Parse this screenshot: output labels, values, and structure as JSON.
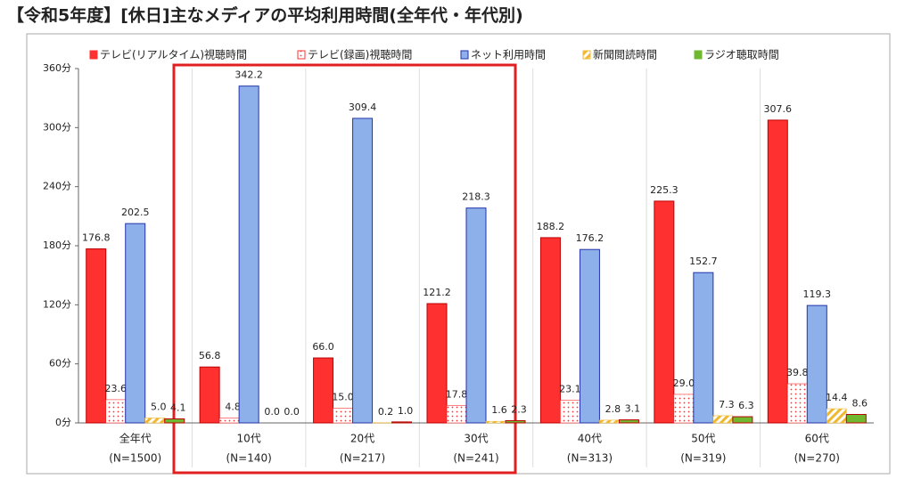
{
  "chart_data": {
    "type": "bar",
    "title": "【令和5年度】[休日]主なメディアの平均利用時間(全年代・年代別)",
    "categories": [
      "全年代",
      "10代",
      "20代",
      "30代",
      "40代",
      "50代",
      "60代"
    ],
    "sample_sizes": [
      "(N=1500)",
      "(N=140)",
      "(N=217)",
      "(N=241)",
      "(N=313)",
      "(N=319)",
      "(N=270)"
    ],
    "series": [
      {
        "name": "テレビ(リアルタイム)視聴時間",
        "color": "#ff3030",
        "pattern": "solid",
        "values": [
          176.8,
          56.8,
          66.0,
          121.2,
          188.2,
          225.3,
          307.6
        ],
        "value_labels": [
          "176.8",
          "56.8",
          "66.0",
          "121.2",
          "188.2",
          "225.3",
          "307.6"
        ]
      },
      {
        "name": "テレビ(録画)視聴時間",
        "color": "#ff3030",
        "pattern": "dots",
        "values": [
          23.6,
          4.8,
          15.0,
          17.8,
          23.1,
          29.0,
          39.8
        ],
        "value_labels": [
          "23.6",
          "4.8",
          "15.0",
          "17.8",
          "23.1",
          "29.0",
          "39.8"
        ]
      },
      {
        "name": "ネット利用時間",
        "color": "#8eb0ea",
        "pattern": "solid",
        "values": [
          202.5,
          342.2,
          309.4,
          218.3,
          176.2,
          152.7,
          119.3
        ],
        "value_labels": [
          "202.5",
          "342.2",
          "309.4",
          "218.3",
          "176.2",
          "152.7",
          "119.3"
        ]
      },
      {
        "name": "新聞閲読時間",
        "color": "#f0b830",
        "pattern": "stripes",
        "values": [
          5.0,
          0.0,
          0.2,
          1.6,
          2.8,
          7.3,
          14.4
        ],
        "value_labels": [
          "5.0",
          "0.0",
          "0.2",
          "1.6",
          "2.8",
          "7.3",
          "14.4"
        ]
      },
      {
        "name": "ラジオ聴取時間",
        "color": "#70b830",
        "pattern": "solid",
        "values": [
          4.1,
          0.0,
          1.0,
          2.3,
          3.1,
          6.3,
          8.6
        ],
        "value_labels": [
          "4.1",
          "0.0",
          "1.0",
          "2.3",
          "3.1",
          "6.3",
          "8.6"
        ]
      }
    ],
    "ylim": [
      0,
      360
    ],
    "yticks": [
      {
        "value": 0,
        "label": "0分"
      },
      {
        "value": 60,
        "label": "60分"
      },
      {
        "value": 120,
        "label": "120分"
      },
      {
        "value": 180,
        "label": "180分"
      },
      {
        "value": 240,
        "label": "240分"
      },
      {
        "value": 300,
        "label": "300分"
      },
      {
        "value": 360,
        "label": "360分"
      }
    ],
    "legend": "top"
  }
}
